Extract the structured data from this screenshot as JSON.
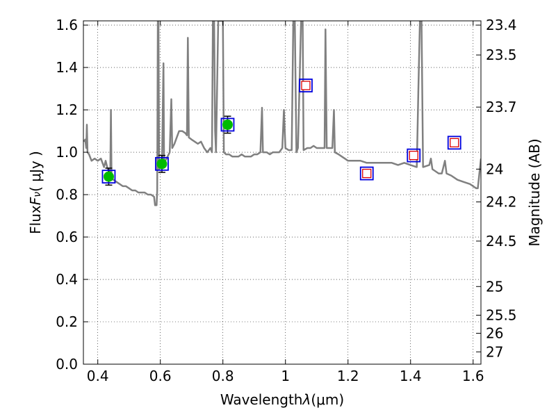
{
  "chart_data": {
    "type": "scatter",
    "xlabel_text": "Wavelength",
    "xlabel_symbol": "λ",
    "xlabel_unit": "(μm)",
    "ylabel_text": "Flux",
    "ylabel_symbol": "F",
    "ylabel_subscript": "ν",
    "ylabel_unit": "( μJy )",
    "y2label": "Magnitude (AB)",
    "xlim": [
      0.354,
      1.625
    ],
    "ylim": [
      0.0,
      1.62
    ],
    "x_ticks": [
      0.4,
      0.6,
      0.8,
      1.0,
      1.2,
      1.4,
      1.6
    ],
    "x_tick_labels": [
      "0.4",
      "0.6",
      "0.8",
      "1",
      "1.2",
      "1.4",
      "1.6"
    ],
    "y_ticks": [
      0.0,
      0.2,
      0.4,
      0.6,
      0.8,
      1.0,
      1.2,
      1.4,
      1.6
    ],
    "y_tick_labels": [
      "0.0",
      "0.2",
      "0.4",
      "0.6",
      "0.8",
      "1.0",
      "1.2",
      "1.4",
      "1.6"
    ],
    "y2_ticks": [
      {
        "label": "23.4",
        "flux": 1.6
      },
      {
        "label": "23.5",
        "flux": 1.459
      },
      {
        "label": "23.7",
        "flux": 1.213
      },
      {
        "label": "24",
        "flux": 0.9204
      },
      {
        "label": "24.2",
        "flux": 0.7656
      },
      {
        "label": "24.5",
        "flux": 0.5808
      },
      {
        "label": "25",
        "flux": 0.3664
      },
      {
        "label": "25.5",
        "flux": 0.2312
      },
      {
        "label": "26",
        "flux": 0.1459
      },
      {
        "label": "27",
        "flux": 0.0581
      }
    ],
    "grid": true,
    "colors": {
      "sed": "#808080",
      "filled_marker": "#00bb00",
      "box_outline": "#0000dd",
      "inner_box": "#dd0000",
      "errorbar": "#000000"
    },
    "series": [
      {
        "style": "line",
        "points": [
          [
            0.355,
            1.05
          ],
          [
            0.36,
            1.06
          ],
          [
            0.363,
            1.02
          ],
          [
            0.365,
            1.13
          ],
          [
            0.367,
            1.0
          ],
          [
            0.372,
            0.99
          ],
          [
            0.38,
            0.96
          ],
          [
            0.39,
            0.97
          ],
          [
            0.4,
            0.96
          ],
          [
            0.41,
            0.97
          ],
          [
            0.42,
            0.93
          ],
          [
            0.425,
            0.96
          ],
          [
            0.43,
            0.93
          ],
          [
            0.435,
            0.91
          ],
          [
            0.44,
            0.9
          ],
          [
            0.442,
            1.2
          ],
          [
            0.444,
            0.88
          ],
          [
            0.45,
            0.87
          ],
          [
            0.46,
            0.86
          ],
          [
            0.47,
            0.85
          ],
          [
            0.48,
            0.84
          ],
          [
            0.49,
            0.84
          ],
          [
            0.5,
            0.83
          ],
          [
            0.51,
            0.82
          ],
          [
            0.52,
            0.82
          ],
          [
            0.53,
            0.81
          ],
          [
            0.54,
            0.81
          ],
          [
            0.55,
            0.81
          ],
          [
            0.56,
            0.8
          ],
          [
            0.57,
            0.8
          ],
          [
            0.58,
            0.79
          ],
          [
            0.583,
            0.75
          ],
          [
            0.588,
            0.75
          ],
          [
            0.59,
            0.82
          ],
          [
            0.592,
            1.62
          ],
          [
            0.594,
            1.62
          ],
          [
            0.596,
            0.92
          ],
          [
            0.6,
            0.93
          ],
          [
            0.605,
            0.93
          ],
          [
            0.61,
            1.42
          ],
          [
            0.612,
            0.95
          ],
          [
            0.62,
            0.97
          ],
          [
            0.63,
            1.0
          ],
          [
            0.635,
            1.25
          ],
          [
            0.638,
            1.02
          ],
          [
            0.645,
            1.04
          ],
          [
            0.65,
            1.06
          ],
          [
            0.66,
            1.1
          ],
          [
            0.67,
            1.1
          ],
          [
            0.68,
            1.09
          ],
          [
            0.685,
            1.08
          ],
          [
            0.688,
            1.54
          ],
          [
            0.691,
            1.07
          ],
          [
            0.7,
            1.06
          ],
          [
            0.71,
            1.05
          ],
          [
            0.72,
            1.04
          ],
          [
            0.73,
            1.05
          ],
          [
            0.74,
            1.02
          ],
          [
            0.75,
            1.0
          ],
          [
            0.76,
            1.02
          ],
          [
            0.765,
            1.0
          ],
          [
            0.768,
            1.62
          ],
          [
            0.772,
            1.62
          ],
          [
            0.775,
            1.1
          ],
          [
            0.778,
            1.0
          ],
          [
            0.785,
            1.62
          ],
          [
            0.79,
            1.62
          ],
          [
            0.795,
            1.62
          ],
          [
            0.8,
            1.62
          ],
          [
            0.803,
            1.0
          ],
          [
            0.81,
            0.99
          ],
          [
            0.82,
            0.99
          ],
          [
            0.83,
            0.98
          ],
          [
            0.84,
            0.98
          ],
          [
            0.85,
            0.98
          ],
          [
            0.86,
            0.99
          ],
          [
            0.87,
            0.98
          ],
          [
            0.88,
            0.98
          ],
          [
            0.89,
            0.98
          ],
          [
            0.9,
            0.99
          ],
          [
            0.91,
            0.99
          ],
          [
            0.92,
            1.0
          ],
          [
            0.925,
            1.21
          ],
          [
            0.928,
            1.0
          ],
          [
            0.94,
            1.0
          ],
          [
            0.95,
            0.99
          ],
          [
            0.96,
            1.0
          ],
          [
            0.97,
            1.0
          ],
          [
            0.98,
            1.0
          ],
          [
            0.99,
            1.02
          ],
          [
            0.995,
            1.2
          ],
          [
            1.0,
            1.02
          ],
          [
            1.01,
            1.01
          ],
          [
            1.02,
            1.01
          ],
          [
            1.025,
            1.62
          ],
          [
            1.03,
            1.62
          ],
          [
            1.035,
            1.0
          ],
          [
            1.04,
            1.02
          ],
          [
            1.05,
            1.62
          ],
          [
            1.055,
            1.62
          ],
          [
            1.058,
            1.01
          ],
          [
            1.07,
            1.02
          ],
          [
            1.08,
            1.02
          ],
          [
            1.09,
            1.03
          ],
          [
            1.1,
            1.02
          ],
          [
            1.11,
            1.02
          ],
          [
            1.125,
            1.02
          ],
          [
            1.128,
            1.58
          ],
          [
            1.132,
            1.02
          ],
          [
            1.14,
            1.02
          ],
          [
            1.15,
            1.02
          ],
          [
            1.155,
            1.2
          ],
          [
            1.158,
            1.0
          ],
          [
            1.17,
            0.99
          ],
          [
            1.18,
            0.98
          ],
          [
            1.19,
            0.97
          ],
          [
            1.2,
            0.96
          ],
          [
            1.22,
            0.96
          ],
          [
            1.24,
            0.96
          ],
          [
            1.26,
            0.95
          ],
          [
            1.28,
            0.95
          ],
          [
            1.3,
            0.95
          ],
          [
            1.32,
            0.95
          ],
          [
            1.34,
            0.95
          ],
          [
            1.36,
            0.94
          ],
          [
            1.38,
            0.95
          ],
          [
            1.4,
            0.94
          ],
          [
            1.42,
            0.93
          ],
          [
            1.425,
            1.3
          ],
          [
            1.43,
            1.62
          ],
          [
            1.435,
            1.62
          ],
          [
            1.44,
            0.93
          ],
          [
            1.46,
            0.94
          ],
          [
            1.465,
            0.97
          ],
          [
            1.47,
            0.92
          ],
          [
            1.48,
            0.91
          ],
          [
            1.49,
            0.9
          ],
          [
            1.5,
            0.9
          ],
          [
            1.51,
            0.96
          ],
          [
            1.515,
            0.9
          ],
          [
            1.53,
            0.89
          ],
          [
            1.55,
            0.87
          ],
          [
            1.57,
            0.86
          ],
          [
            1.59,
            0.85
          ],
          [
            1.6,
            0.84
          ],
          [
            1.61,
            0.83
          ],
          [
            1.615,
            0.83
          ],
          [
            1.625,
            0.97
          ]
        ]
      },
      {
        "style": "filled-circle-with-errorbar",
        "points": [
          {
            "x": 0.435,
            "y": 0.885,
            "err": 0.04
          },
          {
            "x": 0.605,
            "y": 0.945,
            "err": 0.04
          },
          {
            "x": 0.815,
            "y": 1.13,
            "err": 0.04
          }
        ]
      },
      {
        "style": "blue-square",
        "points": [
          {
            "x": 0.435,
            "y": 0.885
          },
          {
            "x": 0.605,
            "y": 0.945
          },
          {
            "x": 0.815,
            "y": 1.13
          },
          {
            "x": 1.065,
            "y": 1.315
          },
          {
            "x": 1.26,
            "y": 0.9
          },
          {
            "x": 1.41,
            "y": 0.985
          },
          {
            "x": 1.54,
            "y": 1.045
          }
        ]
      },
      {
        "style": "red-square",
        "points": [
          {
            "x": 1.065,
            "y": 1.315
          },
          {
            "x": 1.26,
            "y": 0.9
          },
          {
            "x": 1.41,
            "y": 0.985
          },
          {
            "x": 1.54,
            "y": 1.045
          }
        ]
      }
    ]
  }
}
